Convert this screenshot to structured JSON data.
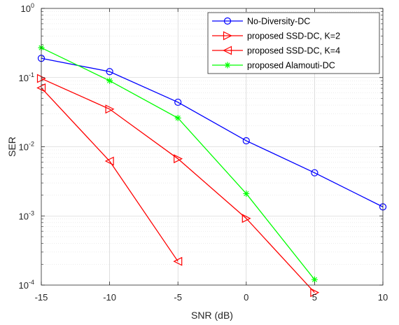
{
  "chart_data": {
    "type": "line",
    "title": "",
    "xlabel": "SNR (dB)",
    "ylabel": "SER",
    "xlim": [
      -15,
      10
    ],
    "ylim": [
      0.0001,
      1
    ],
    "yscale": "log",
    "xticks": [
      -15,
      -10,
      -5,
      0,
      5,
      10
    ],
    "yticks": [
      {
        "value": 1,
        "base": "10",
        "exp": "0"
      },
      {
        "value": 0.1,
        "base": "10",
        "exp": "-1"
      },
      {
        "value": 0.01,
        "base": "10",
        "exp": "-2"
      },
      {
        "value": 0.001,
        "base": "10",
        "exp": "-3"
      },
      {
        "value": 0.0001,
        "base": "10",
        "exp": "-4"
      }
    ],
    "grid": true,
    "legend_position": "top-right",
    "series": [
      {
        "name": "No-Diversity-DC",
        "color": "#0000ff",
        "marker": "circle",
        "x": [
          -15,
          -10,
          -5,
          0,
          5,
          10
        ],
        "y": [
          0.19,
          0.122,
          0.044,
          0.0122,
          0.0042,
          0.00135
        ]
      },
      {
        "name": "proposed SSD-DC, K=2",
        "color": "#ff0000",
        "marker": "triangle-right",
        "x": [
          -15,
          -10,
          -5,
          0,
          5
        ],
        "y": [
          0.097,
          0.035,
          0.0067,
          0.00092,
          7.8e-05
        ]
      },
      {
        "name": "proposed SSD-DC, K=4",
        "color": "#ff0000",
        "marker": "triangle-left",
        "x": [
          -15,
          -10,
          -5
        ],
        "y": [
          0.071,
          0.0062,
          0.00022
        ]
      },
      {
        "name": "proposed Alamouti-DC",
        "color": "#00ff00",
        "marker": "asterisk",
        "x": [
          -15,
          -10,
          -5,
          0,
          5
        ],
        "y": [
          0.27,
          0.09,
          0.026,
          0.0021,
          0.00012
        ]
      }
    ]
  }
}
